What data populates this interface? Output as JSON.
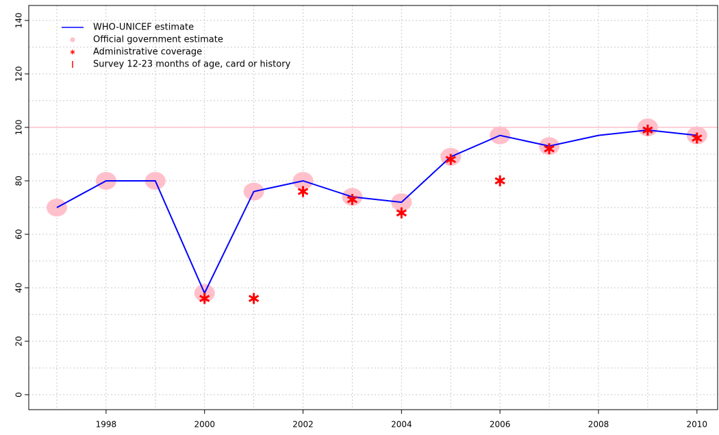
{
  "chart_data": {
    "type": "line",
    "x": [
      1997,
      1998,
      1999,
      2000,
      2001,
      2002,
      2003,
      2004,
      2005,
      2006,
      2007,
      2008,
      2009,
      2010
    ],
    "series": [
      {
        "name": "WHO-UNICEF estimate",
        "color": "#0000ff",
        "marker": "line",
        "values": [
          70,
          80,
          80,
          38,
          76,
          80,
          74,
          72,
          89,
          97,
          93,
          97,
          99,
          97
        ]
      },
      {
        "name": "Official government estimate",
        "color": "#ffc0cb",
        "marker": "disc",
        "values": [
          70,
          80,
          80,
          38,
          76,
          80,
          74,
          72,
          89,
          97,
          93,
          null,
          100,
          97
        ]
      },
      {
        "name": "Administrative coverage",
        "color": "#ff0000",
        "marker": "star",
        "values": [
          null,
          null,
          null,
          36,
          36,
          76,
          73,
          68,
          88,
          80,
          92,
          null,
          99,
          96
        ]
      },
      {
        "name": "Survey 12-23 months of age, card or history",
        "color": "#ff0000",
        "marker": "tick",
        "values": [
          null,
          null,
          null,
          null,
          null,
          null,
          null,
          null,
          null,
          null,
          null,
          null,
          null,
          null
        ]
      }
    ],
    "xlim": [
      1996.43,
      2010.42
    ],
    "ylim": [
      -5.6,
      145.6
    ],
    "xticks": [
      1998,
      2000,
      2002,
      2004,
      2006,
      2008,
      2010
    ],
    "yticks": [
      0,
      20,
      40,
      60,
      80,
      100,
      120,
      140
    ],
    "xgrid": [
      1997,
      1998,
      1999,
      2000,
      2001,
      2002,
      2003,
      2004,
      2005,
      2006,
      2007,
      2008,
      2009,
      2010
    ],
    "ygrid": [
      0,
      10,
      20,
      30,
      40,
      50,
      60,
      70,
      80,
      90,
      100,
      110,
      120,
      130,
      140
    ],
    "hline": {
      "value": 100,
      "color": "#ffc0cb"
    },
    "legend": "top-left"
  }
}
